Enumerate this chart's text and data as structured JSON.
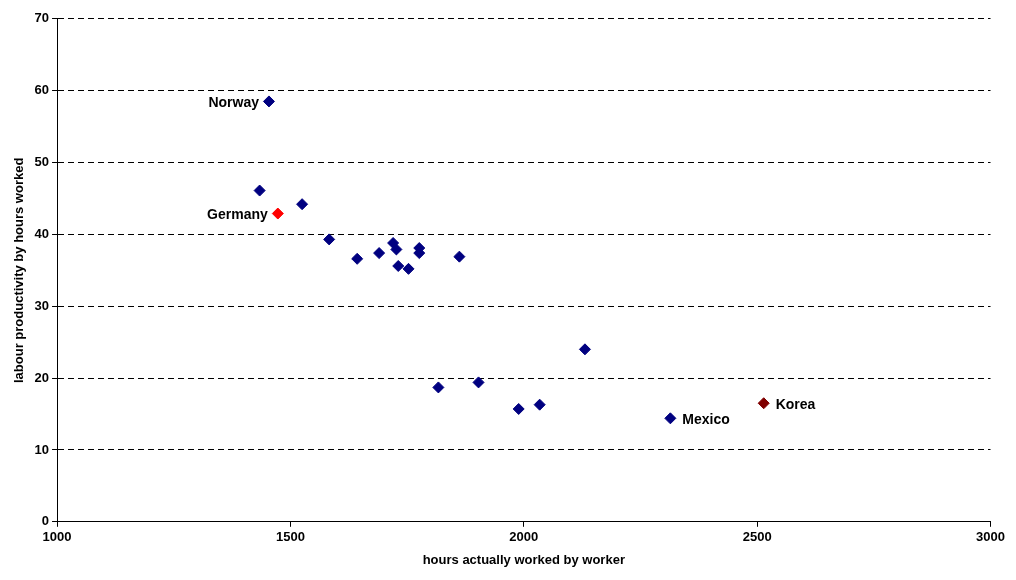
{
  "chart_data": {
    "type": "scatter",
    "xlabel": "hours actually worked by worker",
    "ylabel": "labour productivity by hours worked",
    "x": [
      1454,
      1434,
      1473,
      1525,
      1583,
      1643,
      1690,
      1720,
      1727,
      1731,
      1753,
      1776,
      1776,
      1862,
      1817,
      1903,
      1989,
      2034,
      2131,
      2314,
      2514
    ],
    "values": [
      58.5,
      46.1,
      42.9,
      44.2,
      39.3,
      36.6,
      37.4,
      38.8,
      37.9,
      35.6,
      35.2,
      37.4,
      38.1,
      36.9,
      18.7,
      19.4,
      15.7,
      16.3,
      24.0,
      14.4,
      16.5
    ],
    "colors": [
      "#000080",
      "#000080",
      "#ff0000",
      "#000080",
      "#000080",
      "#000080",
      "#000080",
      "#000080",
      "#000080",
      "#000080",
      "#000080",
      "#000080",
      "#000080",
      "#000080",
      "#000080",
      "#000080",
      "#000080",
      "#000080",
      "#000080",
      "#000080",
      "#800000"
    ],
    "xlim": [
      1000,
      3000
    ],
    "xticks": [
      1000,
      1500,
      2000,
      2500,
      3000
    ],
    "ylim": [
      0,
      70
    ],
    "yticks": [
      0,
      10,
      20,
      30,
      40,
      50,
      60,
      70
    ],
    "grid": "y",
    "marker": "diamond",
    "legend": false,
    "annotations": [
      {
        "text": "Norway",
        "x": 1454,
        "y": 58.5
      },
      {
        "text": "Germany",
        "x": 1473,
        "y": 42.9
      },
      {
        "text": "Mexico",
        "x": 2314,
        "y": 14.4
      },
      {
        "text": "Korea",
        "x": 2514,
        "y": 16.5
      }
    ]
  }
}
